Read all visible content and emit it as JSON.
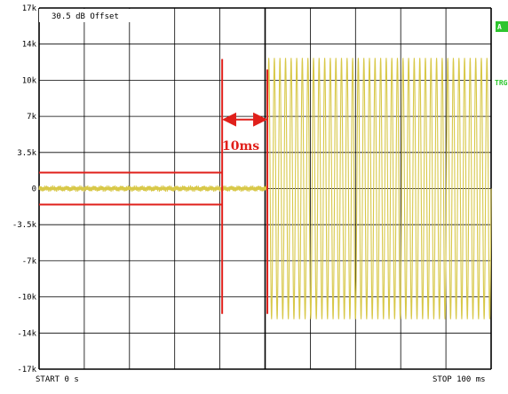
{
  "chart_data": {
    "type": "line",
    "offset_label": "30.5 dB Offset",
    "y_ticks": [
      "17k",
      "14k",
      "10k",
      "7k",
      "3.5k",
      "0",
      "-3.5k",
      "-7k",
      "-10k",
      "-14k",
      "-17k"
    ],
    "ylim": [
      -17,
      17
    ],
    "xlim": [
      0,
      100
    ],
    "x_grid_divisions": 10,
    "start_label": "START 0 s",
    "stop_label": "STOP 100 ms",
    "interval_label": "10ms",
    "side_badge": "A",
    "side_label": "TRG",
    "series": [
      {
        "color": "#d8c848",
        "segments": [
          {
            "x_from": 0,
            "x_to": 50.5,
            "kind": "noise",
            "amplitude": 0.3
          },
          {
            "x_from": 50.5,
            "x_to": 100,
            "kind": "oscillation",
            "amplitude": 12.3,
            "cycles": 40
          }
        ]
      }
    ],
    "markers": [
      {
        "color": "#e0201b",
        "kind": "envelope_upper",
        "x_from": 0,
        "x_to": 40.5,
        "y": 1.5
      },
      {
        "color": "#e0201b",
        "kind": "envelope_lower",
        "x_from": 0,
        "x_to": 40.5,
        "y": -1.5
      },
      {
        "color": "#e0201b",
        "kind": "vertical",
        "x": 40.5,
        "y_from": -11.8,
        "y_to": 12.2
      },
      {
        "color": "#e0201b",
        "kind": "vertical",
        "x": 50.5,
        "y_from": -11.8,
        "y_to": 11.2
      },
      {
        "color": "#e0201b",
        "kind": "arrow",
        "x_from": 40.5,
        "x_to": 50.5,
        "y": 6.5
      }
    ],
    "colors": {
      "grid": "#000000",
      "signal": "#d8c848",
      "limit": "#e0201b",
      "badge": "#2ec52e"
    }
  }
}
